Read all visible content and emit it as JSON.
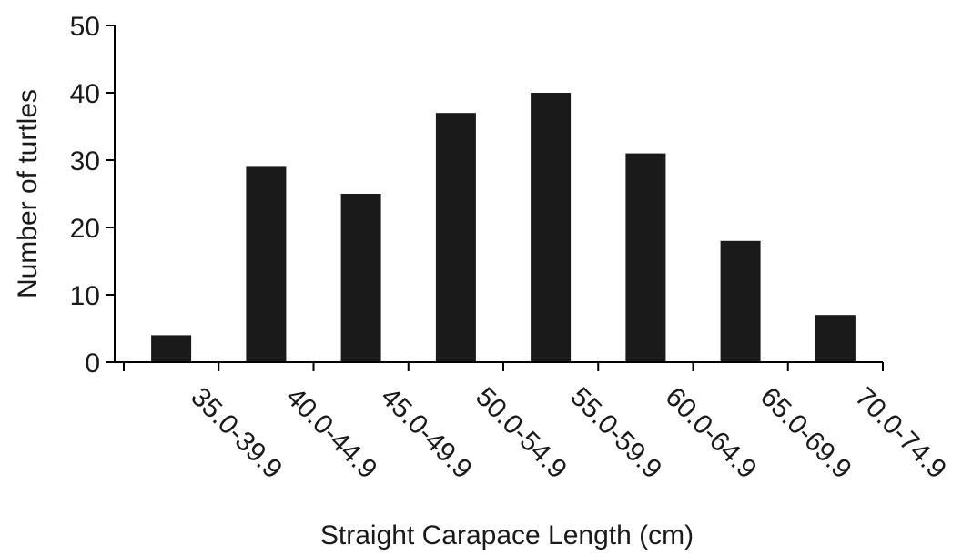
{
  "chart_data": {
    "type": "bar",
    "title": "",
    "xlabel": "Straight Carapace Length (cm)",
    "ylabel": "Number of turtles",
    "categories": [
      "35.0-39.9",
      "40.0-44.9",
      "45.0-49.9",
      "50.0-54.9",
      "55.0-59.9",
      "60.0-64.9",
      "65.0-69.9",
      "70.0-74.9"
    ],
    "values": [
      4,
      29,
      25,
      37,
      40,
      31,
      18,
      7
    ],
    "ylim": [
      0,
      50
    ],
    "yticks": [
      "0",
      "10",
      "20",
      "30",
      "40",
      "50"
    ],
    "grid": false,
    "legend": "none",
    "bar_color": "#1a1a1a"
  }
}
